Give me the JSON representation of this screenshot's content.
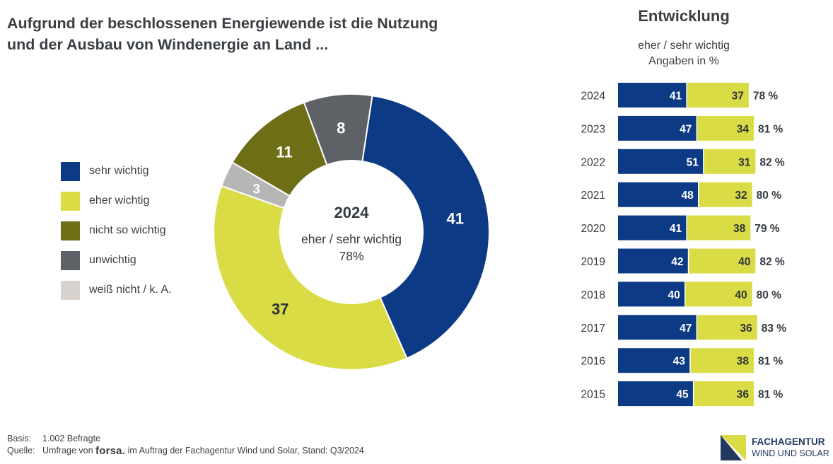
{
  "title_line1": "Aufgrund der beschlossenen Energiewende ist die Nutzung",
  "title_line2": "und der Ausbau von Windenergie an Land ...",
  "colors": {
    "sehr_wichtig": "#0d3a85",
    "eher_wichtig": "#d9dc45",
    "nicht_so_wichtig": "#6e6e16",
    "unwichtig": "#5e6166",
    "weiss_nicht": "#b6b6b6",
    "legend_weiss_nicht": "#d8d2ce"
  },
  "legend": [
    {
      "label": "sehr wichtig",
      "color": "#0d3a85"
    },
    {
      "label": "eher wichtig",
      "color": "#d9dc45"
    },
    {
      "label": "nicht so wichtig",
      "color": "#6e6e16"
    },
    {
      "label": "unwichtig",
      "color": "#5e6166"
    },
    {
      "label": "weiß nicht / k. A.",
      "color": "#d8d2ce"
    }
  ],
  "center": {
    "year": "2024",
    "label": "eher / sehr wichtig",
    "value": "78%"
  },
  "trend": {
    "title": "Entwicklung",
    "subtitle1": "eher / sehr wichtig",
    "subtitle2": "Angaben in %"
  },
  "chart_data": [
    {
      "type": "pie",
      "title": "2024",
      "categories": [
        "sehr wichtig",
        "eher wichtig",
        "weiß nicht / k. A.",
        "nicht so wichtig",
        "unwichtig"
      ],
      "values": [
        41,
        37,
        3,
        11,
        8
      ],
      "labels": [
        "41",
        "37",
        "3",
        "11",
        "8"
      ],
      "colors": [
        "#0d3a85",
        "#d9dc45",
        "#b6b6b6",
        "#6e6e16",
        "#5e6166"
      ],
      "label_colors": [
        "#ffffff",
        "#2f3338",
        "#ffffff",
        "#ffffff",
        "#ffffff"
      ]
    },
    {
      "type": "bar",
      "orientation": "horizontal-stacked",
      "title": "Entwicklung",
      "categories": [
        "2024",
        "2023",
        "2022",
        "2021",
        "2020",
        "2019",
        "2018",
        "2017",
        "2016",
        "2015"
      ],
      "series": [
        {
          "name": "sehr wichtig",
          "values": [
            41,
            47,
            51,
            48,
            41,
            42,
            40,
            47,
            43,
            45
          ]
        },
        {
          "name": "eher wichtig",
          "values": [
            37,
            34,
            31,
            32,
            38,
            40,
            40,
            36,
            38,
            36
          ]
        }
      ],
      "totals": [
        "78 %",
        "81 %",
        "82 %",
        "80 %",
        "79 %",
        "82 %",
        "80 %",
        "83 %",
        "81 %",
        "81 %"
      ]
    }
  ],
  "footer": {
    "basis_key": "Basis:",
    "basis_value": "1.002 Befragte",
    "quelle_key": "Quelle:",
    "quelle_pre": "Umfrage von",
    "forsa": "forsa.",
    "quelle_post": "im Auftrag der Fachagentur Wind und Solar, Stand: Q3/2024"
  },
  "logo": {
    "line1": "FACHAGENTUR",
    "line2": "WIND UND SOLAR"
  }
}
